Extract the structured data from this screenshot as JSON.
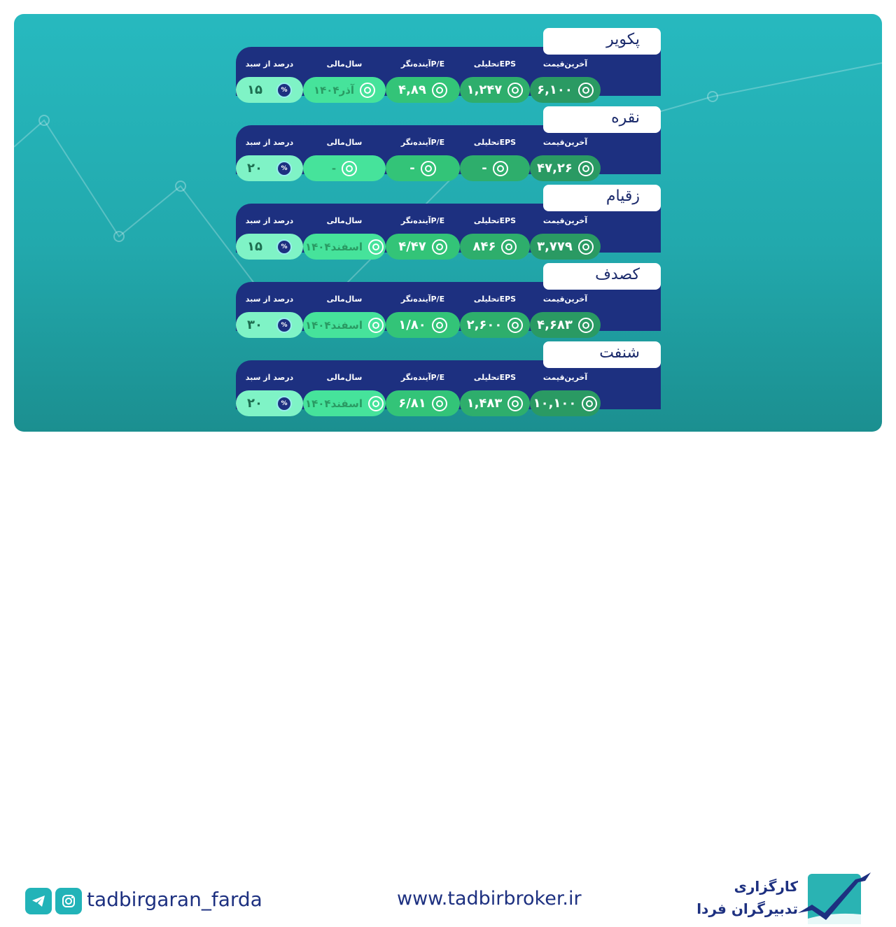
{
  "headers": {
    "price": "آخرین‌قیمت",
    "eps": "EPSتحلیلی",
    "pe": "P/Eآینده‌نگر",
    "fy": "سال‌مالی",
    "pct": "درصد از سبد"
  },
  "stocks": [
    {
      "name": "پکویر",
      "price": "۶,۱۰۰",
      "eps": "۱,۲۴۷",
      "pe": "۴,۸۹",
      "fy": "آذر۱۴۰۴",
      "pct": "۱۵"
    },
    {
      "name": "نقره",
      "price": "۴۷,۲۶",
      "eps": "-",
      "pe": "-",
      "fy": "-",
      "pct": "۲۰"
    },
    {
      "name": "زقیام",
      "price": "۳,۷۷۹",
      "eps": "۸۴۶",
      "pe": "۴/۴۷",
      "fy": "اسفند۱۴۰۴",
      "pct": "۱۵"
    },
    {
      "name": "کصدف",
      "price": "۴,۶۸۳",
      "eps": "۲,۶۰۰",
      "pe": "۱/۸۰",
      "fy": "اسفند۱۴۰۴",
      "pct": "۳۰"
    },
    {
      "name": "شنفت",
      "price": "۱۰,۱۰۰",
      "eps": "۱,۴۸۳",
      "pe": "۶/۸۱",
      "fy": "اسفند۱۴۰۴",
      "pct": "۲۰"
    }
  ],
  "footer": {
    "handle": "tadbirgaran_farda",
    "website": "www.tadbirbroker.ir",
    "brand_line1": "کارگزاری",
    "brand_line2": "تدبیرگران فردا"
  },
  "colors": {
    "navy": "#1d3080",
    "teal": "#22b3b8"
  }
}
